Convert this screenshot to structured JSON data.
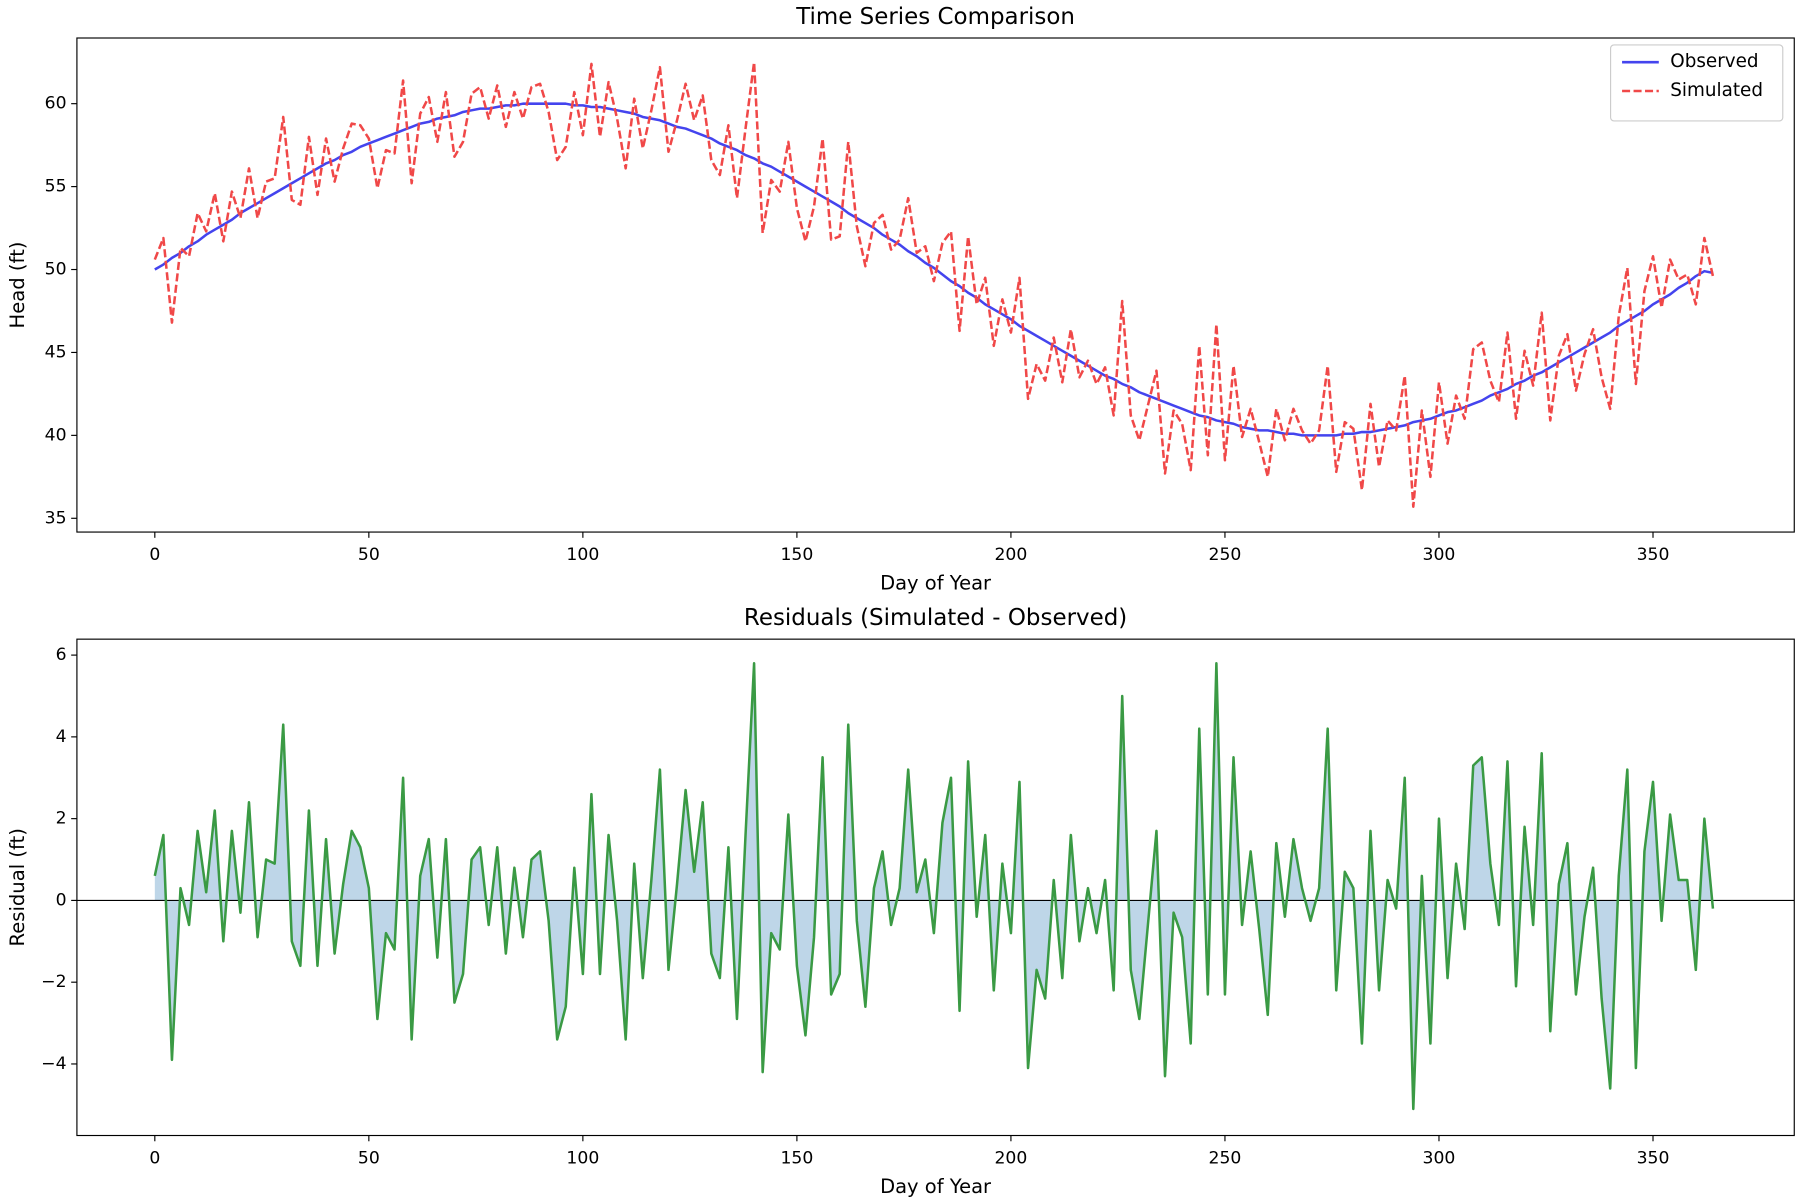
{
  "chart_data": [
    {
      "type": "line",
      "title": "Time Series Comparison",
      "xlabel": "Day of Year",
      "ylabel": "Head (ft)",
      "xlim": [
        -18.2,
        383.0
      ],
      "ylim": [
        34.17,
        63.96
      ],
      "xticks": [
        0,
        50,
        100,
        150,
        200,
        250,
        300,
        350
      ],
      "yticks": [
        35,
        40,
        45,
        50,
        55,
        60
      ],
      "legend": "upper right",
      "x": [
        0,
        2,
        4,
        6,
        8,
        10,
        12,
        14,
        16,
        18,
        20,
        22,
        24,
        26,
        28,
        30,
        32,
        34,
        36,
        38,
        40,
        42,
        44,
        46,
        48,
        50,
        52,
        54,
        56,
        58,
        60,
        62,
        64,
        66,
        68,
        70,
        72,
        74,
        76,
        78,
        80,
        82,
        84,
        86,
        88,
        90,
        92,
        94,
        96,
        98,
        100,
        102,
        104,
        106,
        108,
        110,
        112,
        114,
        116,
        118,
        120,
        122,
        124,
        126,
        128,
        130,
        132,
        134,
        136,
        138,
        140,
        142,
        144,
        146,
        148,
        150,
        152,
        154,
        156,
        158,
        160,
        162,
        164,
        166,
        168,
        170,
        172,
        174,
        176,
        178,
        180,
        182,
        184,
        186,
        188,
        190,
        192,
        194,
        196,
        198,
        200,
        202,
        204,
        206,
        208,
        210,
        212,
        214,
        216,
        218,
        220,
        222,
        224,
        226,
        228,
        230,
        232,
        234,
        236,
        238,
        240,
        242,
        244,
        246,
        248,
        250,
        252,
        254,
        256,
        258,
        260,
        262,
        264,
        266,
        268,
        270,
        272,
        274,
        276,
        278,
        280,
        282,
        284,
        286,
        288,
        290,
        292,
        294,
        296,
        298,
        300,
        302,
        304,
        306,
        308,
        310,
        312,
        314,
        316,
        318,
        320,
        322,
        324,
        326,
        328,
        330,
        332,
        334,
        336,
        338,
        340,
        342,
        344,
        346,
        348,
        350,
        352,
        354,
        356,
        358,
        360,
        362,
        364
      ],
      "series": [
        {
          "name": "Observed",
          "color": "#4444ee",
          "style": "solid",
          "values": [
            50.0,
            50.3,
            50.7,
            51.0,
            51.4,
            51.7,
            52.1,
            52.4,
            52.7,
            53.0,
            53.4,
            53.7,
            54.0,
            54.3,
            54.6,
            54.9,
            55.2,
            55.5,
            55.8,
            56.1,
            56.4,
            56.6,
            56.9,
            57.1,
            57.4,
            57.6,
            57.8,
            58.0,
            58.2,
            58.4,
            58.6,
            58.8,
            58.9,
            59.1,
            59.2,
            59.3,
            59.5,
            59.6,
            59.7,
            59.7,
            59.8,
            59.9,
            59.9,
            60.0,
            60.0,
            60.0,
            60.0,
            60.0,
            60.0,
            59.9,
            59.9,
            59.8,
            59.8,
            59.7,
            59.6,
            59.5,
            59.4,
            59.2,
            59.1,
            59.0,
            58.8,
            58.6,
            58.5,
            58.3,
            58.1,
            57.9,
            57.6,
            57.4,
            57.2,
            56.9,
            56.7,
            56.4,
            56.2,
            55.9,
            55.6,
            55.3,
            55.0,
            54.7,
            54.4,
            54.1,
            53.8,
            53.4,
            53.1,
            52.8,
            52.5,
            52.1,
            51.8,
            51.5,
            51.1,
            50.8,
            50.4,
            50.1,
            49.7,
            49.3,
            49.0,
            48.6,
            48.3,
            47.9,
            47.6,
            47.3,
            47.0,
            46.6,
            46.3,
            46.0,
            45.7,
            45.4,
            45.1,
            44.8,
            44.5,
            44.2,
            43.9,
            43.6,
            43.4,
            43.1,
            42.9,
            42.6,
            42.4,
            42.2,
            42.0,
            41.8,
            41.6,
            41.4,
            41.2,
            41.1,
            40.9,
            40.8,
            40.7,
            40.5,
            40.4,
            40.3,
            40.3,
            40.2,
            40.1,
            40.1,
            40.0,
            40.0,
            40.0,
            40.0,
            40.0,
            40.1,
            40.1,
            40.2,
            40.2,
            40.3,
            40.4,
            40.5,
            40.6,
            40.8,
            40.9,
            41.0,
            41.2,
            41.4,
            41.5,
            41.7,
            41.9,
            42.1,
            42.4,
            42.6,
            42.8,
            43.1,
            43.3,
            43.6,
            43.8,
            44.1,
            44.4,
            44.7,
            45.0,
            45.3,
            45.6,
            45.9,
            46.2,
            46.6,
            46.9,
            47.2,
            47.5,
            47.9,
            48.2,
            48.5,
            48.9,
            49.2,
            49.6,
            49.9,
            49.8
          ]
        },
        {
          "name": "Simulated",
          "color": "#f04848",
          "style": "dashed",
          "values": [
            50.6,
            51.9,
            46.8,
            51.3,
            50.8,
            53.4,
            52.3,
            54.6,
            51.7,
            54.7,
            53.1,
            56.1,
            53.1,
            55.3,
            55.5,
            59.2,
            54.2,
            53.9,
            58.0,
            54.5,
            57.9,
            55.3,
            57.3,
            58.8,
            58.7,
            57.9,
            54.9,
            57.2,
            57.0,
            61.4,
            55.2,
            59.4,
            60.4,
            57.7,
            60.7,
            56.8,
            57.7,
            60.6,
            61.0,
            59.1,
            61.1,
            58.6,
            60.7,
            59.1,
            61.0,
            61.2,
            59.5,
            56.6,
            57.4,
            60.7,
            58.1,
            62.4,
            58.0,
            61.3,
            59.1,
            56.1,
            60.3,
            57.3,
            59.6,
            62.2,
            57.1,
            59.0,
            61.2,
            59.0,
            60.5,
            56.6,
            55.7,
            58.7,
            54.3,
            58.5,
            62.5,
            52.2,
            55.4,
            54.7,
            57.7,
            53.7,
            51.7,
            53.8,
            57.9,
            51.8,
            52.0,
            57.7,
            52.6,
            50.2,
            52.8,
            53.3,
            51.2,
            51.8,
            54.3,
            51.0,
            51.4,
            49.3,
            51.6,
            52.3,
            46.3,
            52.0,
            47.9,
            49.5,
            45.4,
            48.2,
            46.2,
            49.5,
            42.2,
            44.3,
            43.3,
            45.9,
            43.2,
            46.4,
            43.5,
            44.5,
            43.1,
            44.1,
            41.2,
            48.1,
            41.2,
            39.7,
            41.8,
            43.9,
            37.7,
            41.5,
            40.7,
            37.9,
            45.4,
            38.8,
            46.7,
            38.5,
            44.2,
            39.9,
            41.6,
            39.6,
            37.5,
            41.6,
            39.7,
            41.6,
            40.3,
            39.5,
            40.3,
            44.2,
            37.8,
            40.8,
            40.4,
            36.7,
            41.9,
            38.1,
            40.9,
            40.3,
            43.6,
            35.7,
            41.5,
            37.5,
            43.2,
            39.5,
            42.4,
            41.0,
            45.2,
            45.6,
            43.3,
            42.0,
            46.2,
            41.0,
            45.1,
            43.0,
            47.4,
            40.9,
            44.8,
            46.1,
            42.7,
            44.9,
            46.4,
            43.5,
            41.6,
            47.2,
            50.1,
            43.1,
            48.7,
            50.8,
            47.7,
            50.6,
            49.4,
            49.7,
            47.9,
            51.9,
            49.6
          ]
        }
      ]
    },
    {
      "type": "line",
      "title": "Residuals (Simulated - Observed)",
      "xlabel": "Day of Year",
      "ylabel": "Residual (ft)",
      "xlim": [
        -18.2,
        383.0
      ],
      "ylim": [
        -5.75,
        6.39
      ],
      "xticks": [
        0,
        50,
        100,
        150,
        200,
        250,
        300,
        350
      ],
      "yticks": [
        {
          "value": -4,
          "label": "−4"
        },
        {
          "value": -2,
          "label": "−2"
        },
        0,
        2,
        4,
        6
      ],
      "hline": 0,
      "color": "#3a9a44",
      "fill": "#b7d1e6",
      "x": [
        0,
        2,
        4,
        6,
        8,
        10,
        12,
        14,
        16,
        18,
        20,
        22,
        24,
        26,
        28,
        30,
        32,
        34,
        36,
        38,
        40,
        42,
        44,
        46,
        48,
        50,
        52,
        54,
        56,
        58,
        60,
        62,
        64,
        66,
        68,
        70,
        72,
        74,
        76,
        78,
        80,
        82,
        84,
        86,
        88,
        90,
        92,
        94,
        96,
        98,
        100,
        102,
        104,
        106,
        108,
        110,
        112,
        114,
        116,
        118,
        120,
        122,
        124,
        126,
        128,
        130,
        132,
        134,
        136,
        138,
        140,
        142,
        144,
        146,
        148,
        150,
        152,
        154,
        156,
        158,
        160,
        162,
        164,
        166,
        168,
        170,
        172,
        174,
        176,
        178,
        180,
        182,
        184,
        186,
        188,
        190,
        192,
        194,
        196,
        198,
        200,
        202,
        204,
        206,
        208,
        210,
        212,
        214,
        216,
        218,
        220,
        222,
        224,
        226,
        228,
        230,
        232,
        234,
        236,
        238,
        240,
        242,
        244,
        246,
        248,
        250,
        252,
        254,
        256,
        258,
        260,
        262,
        264,
        266,
        268,
        270,
        272,
        274,
        276,
        278,
        280,
        282,
        284,
        286,
        288,
        290,
        292,
        294,
        296,
        298,
        300,
        302,
        304,
        306,
        308,
        310,
        312,
        314,
        316,
        318,
        320,
        322,
        324,
        326,
        328,
        330,
        332,
        334,
        336,
        338,
        340,
        342,
        344,
        346,
        348,
        350,
        352,
        354,
        356,
        358,
        360,
        362,
        364
      ],
      "values": [
        0.6,
        1.6,
        -3.9,
        0.3,
        -0.6,
        1.7,
        0.2,
        2.2,
        -1.0,
        1.7,
        -0.3,
        2.4,
        -0.9,
        1.0,
        0.9,
        4.3,
        -1.0,
        -1.6,
        2.2,
        -1.6,
        1.5,
        -1.3,
        0.4,
        1.7,
        1.3,
        0.3,
        -2.9,
        -0.8,
        -1.2,
        3.0,
        -3.4,
        0.6,
        1.5,
        -1.4,
        1.5,
        -2.5,
        -1.8,
        1.0,
        1.3,
        -0.6,
        1.3,
        -1.3,
        0.8,
        -0.9,
        1.0,
        1.2,
        -0.5,
        -3.4,
        -2.6,
        0.8,
        -1.8,
        2.6,
        -1.8,
        1.6,
        -0.5,
        -3.4,
        0.9,
        -1.9,
        0.5,
        3.2,
        -1.7,
        0.4,
        2.7,
        0.7,
        2.4,
        -1.3,
        -1.9,
        1.3,
        -2.9,
        1.6,
        5.8,
        -4.2,
        -0.8,
        -1.2,
        2.1,
        -1.6,
        -3.3,
        -0.9,
        3.5,
        -2.3,
        -1.8,
        4.3,
        -0.5,
        -2.6,
        0.3,
        1.2,
        -0.6,
        0.3,
        3.2,
        0.2,
        1.0,
        -0.8,
        1.9,
        3.0,
        -2.7,
        3.4,
        -0.4,
        1.6,
        -2.2,
        0.9,
        -0.8,
        2.9,
        -4.1,
        -1.7,
        -2.4,
        0.5,
        -1.9,
        1.6,
        -1.0,
        0.3,
        -0.8,
        0.5,
        -2.2,
        5.0,
        -1.7,
        -2.9,
        -0.6,
        1.7,
        -4.3,
        -0.3,
        -0.9,
        -3.5,
        4.2,
        -2.3,
        5.8,
        -2.3,
        3.5,
        -0.6,
        1.2,
        -0.7,
        -2.8,
        1.4,
        -0.4,
        1.5,
        0.3,
        -0.5,
        0.3,
        4.2,
        -2.2,
        0.7,
        0.3,
        -3.5,
        1.7,
        -2.2,
        0.5,
        -0.2,
        3.0,
        -5.1,
        0.6,
        -3.5,
        2.0,
        -1.9,
        0.9,
        -0.7,
        3.3,
        3.5,
        0.9,
        -0.6,
        3.4,
        -2.1,
        1.8,
        -0.6,
        3.6,
        -3.2,
        0.4,
        1.4,
        -2.3,
        -0.4,
        0.8,
        -2.4,
        -4.6,
        0.6,
        3.2,
        -4.1,
        1.2,
        2.9,
        -0.5,
        2.1,
        0.5,
        0.5,
        -1.7,
        2.0,
        -0.2
      ]
    }
  ]
}
